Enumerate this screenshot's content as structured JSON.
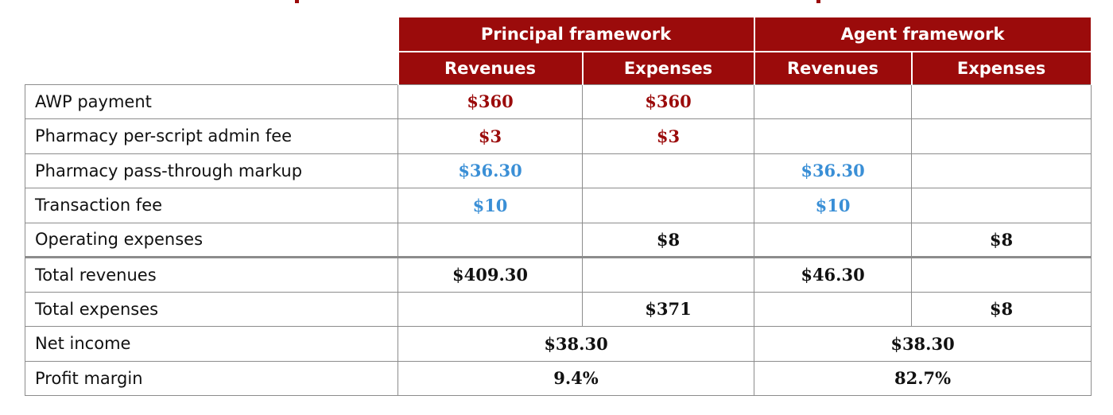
{
  "colors": {
    "header_bg": "#9b0b0b",
    "header_text": "#ffffff",
    "principal_value": "#9b0b0b",
    "passthrough_value": "#3a8fd6",
    "total_value": "#111111",
    "grid": "#8c8c8c"
  },
  "header": {
    "principal": "Principal framework",
    "agent": "Agent framework",
    "principal_revenues": "Revenues",
    "principal_expenses": "Expenses",
    "agent_revenues": "Revenues",
    "agent_expenses": "Expenses"
  },
  "rows": [
    {
      "label": "AWP payment",
      "principal_revenues": "$360",
      "principal_expenses": "$360",
      "agent_revenues": "",
      "agent_expenses": ""
    },
    {
      "label": "Pharmacy per-script admin fee",
      "principal_revenues": "$3",
      "principal_expenses": "$3",
      "agent_revenues": "",
      "agent_expenses": ""
    },
    {
      "label": "Pharmacy pass-through markup",
      "principal_revenues": "$36.30",
      "principal_expenses": "",
      "agent_revenues": "$36.30",
      "agent_expenses": ""
    },
    {
      "label": "Transaction fee",
      "principal_revenues": "$10",
      "principal_expenses": "",
      "agent_revenues": "$10",
      "agent_expenses": ""
    },
    {
      "label": "Operating expenses",
      "principal_revenues": "",
      "principal_expenses": "$8",
      "agent_revenues": "",
      "agent_expenses": "$8"
    }
  ],
  "totals": [
    {
      "label": "Total revenues",
      "principal_revenues": "$409.30",
      "principal_expenses": "",
      "agent_revenues": "$46.30",
      "agent_expenses": ""
    },
    {
      "label": "Total expenses",
      "principal_revenues": "",
      "principal_expenses": "$371",
      "agent_revenues": "",
      "agent_expenses": "$8"
    }
  ],
  "summary": [
    {
      "label": "Net income",
      "principal": "$38.30",
      "agent": "$38.30"
    },
    {
      "label": "Profit margin",
      "principal": "9.4%",
      "agent": "82.7%"
    }
  ]
}
